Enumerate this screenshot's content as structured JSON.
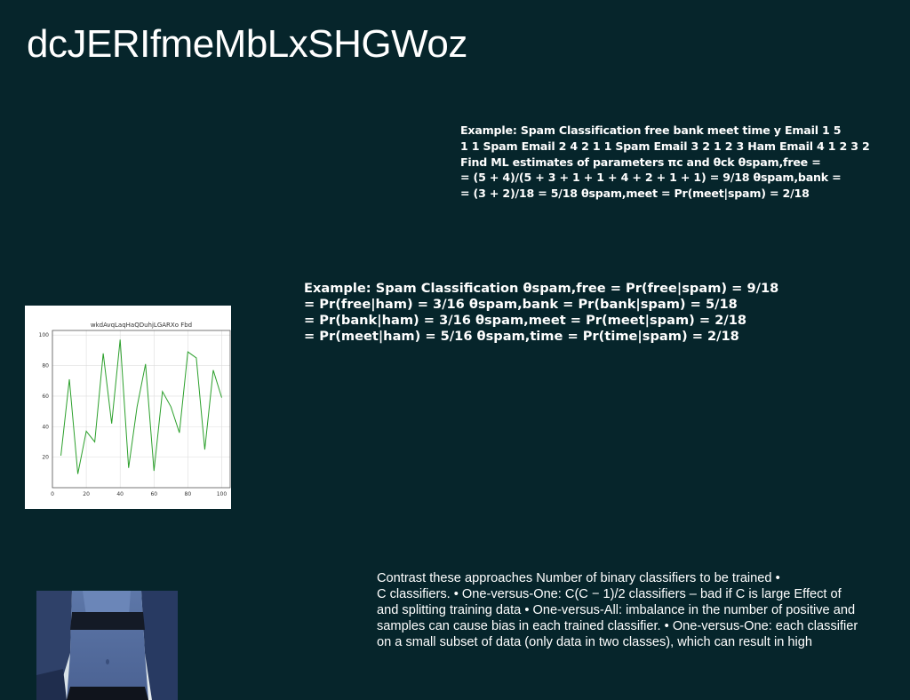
{
  "title": "dcJERIfmeMbLxSHGWoz",
  "block1": {
    "lines": [
      "Example: Spam Classification free bank meet time y Email 1 5",
      "1 1 Spam Email 2 4 2 1 1 Spam Email 3 2 1 2 3 Ham Email 4 1 2 3 2",
      "Find ML estimates of parameters πc and θck θspam,free =",
      "= (5 + 4)/(5 + 3 + 1 + 1 + 4 + 2 + 1 + 1) = 9/18 θspam,bank =",
      "= (3 + 2)/18 = 5/18 θspam,meet = Pr(meet|spam) = 2/18"
    ]
  },
  "block2": {
    "lines": [
      "Example: Spam Classification θspam,free = Pr(free|spam) = 9/18",
      "= Pr(free|ham) = 3/16 θspam,bank = Pr(bank|spam) = 5/18",
      "= Pr(bank|ham) = 3/16 θspam,meet = Pr(meet|spam) = 2/18",
      "= Pr(meet|ham) = 5/16 θspam,time = Pr(time|spam) = 2/18"
    ]
  },
  "block3": {
    "lines": [
      "Contrast these approaches Number of binary classifiers to be trained •",
      "C classifiers. • One-versus-One: C(C − 1)/2 classifiers – bad if C is large Effect of",
      "and splitting training data • One-versus-All: imbalance in the number of positive and",
      "samples can cause bias in each trained classifier. • One-versus-One: each classifier",
      "on a small subset of data (only data in two classes), which can result in high"
    ]
  },
  "chart_data": {
    "type": "line",
    "title": "wkdAvqLaqHaQDuhjLGARXo Fbd",
    "x": [
      5,
      10,
      15,
      20,
      25,
      30,
      35,
      40,
      45,
      50,
      55,
      60,
      65,
      70,
      75,
      80,
      85,
      90,
      95,
      100
    ],
    "series": [
      {
        "values": [
          21,
          71,
          9,
          37,
          30,
          88,
          42,
          97,
          13,
          53,
          81,
          11,
          63,
          53,
          36,
          89,
          85,
          25,
          77,
          59
        ]
      }
    ],
    "xlim": [
      0,
      105
    ],
    "ylim": [
      0,
      103
    ],
    "xticks": [
      "0",
      "20",
      "40",
      "60",
      "80",
      "100"
    ],
    "yticks": [
      "20",
      "40",
      "60",
      "80",
      "100"
    ],
    "grid": true,
    "line_color": "#2ca02c"
  }
}
